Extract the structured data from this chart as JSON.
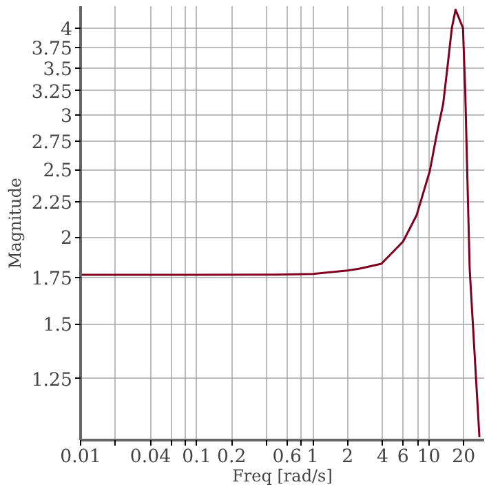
{
  "chart_data": {
    "type": "line",
    "xlabel": "Freq [rad/s]",
    "ylabel": "Magnitude",
    "log": "xy",
    "grid": true,
    "line_style": "solid",
    "marker": "none",
    "xlim": [
      0.01,
      30
    ],
    "ylim": [
      1.02,
      4.3
    ],
    "xticks": [
      0.01,
      {
        "value": 0.02,
        "label": null
      },
      0.04,
      {
        "value": 0.06,
        "label": null
      },
      {
        "value": 0.08,
        "label": null
      },
      0.1,
      0.2,
      {
        "value": 0.4,
        "label": null
      },
      0.6,
      {
        "value": 0.8,
        "label": null
      },
      1,
      2,
      4,
      6,
      {
        "value": 8,
        "label": null
      },
      10,
      20
    ],
    "yticks": [
      1.25,
      1.5,
      1.75,
      2,
      2.25,
      2.5,
      2.75,
      3,
      3.25,
      3.5,
      3.75,
      4
    ],
    "series": [
      {
        "color": "#800020",
        "x": [
          0.01,
          0.1,
          0.5,
          1,
          2,
          2.5,
          3.9,
          6,
          7.85,
          10.2,
          11.7,
          13.3,
          14.5,
          15.8,
          17,
          19.7,
          20.6,
          21.5,
          22.5,
          27.3
        ],
        "values": [
          1.765,
          1.765,
          1.766,
          1.77,
          1.79,
          1.8,
          1.83,
          1.97,
          2.15,
          2.49,
          2.81,
          3.11,
          3.52,
          4.0,
          4.25,
          4.0,
          3.25,
          2.43,
          1.8,
          1.03
        ]
      }
    ]
  }
}
